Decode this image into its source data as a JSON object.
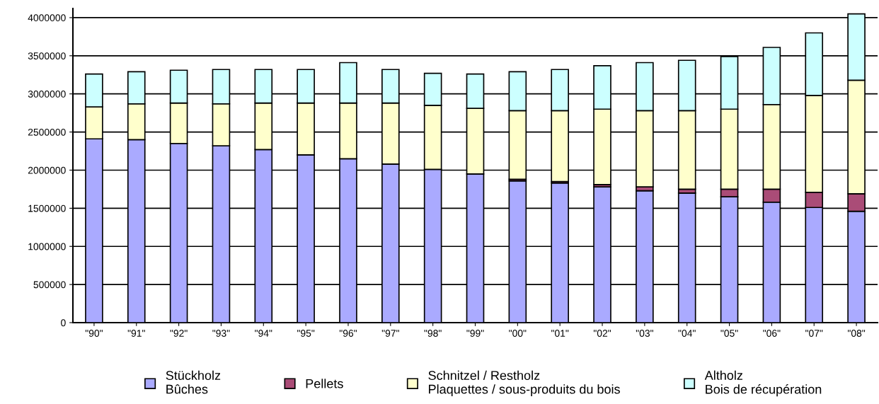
{
  "chart_data": {
    "type": "bar",
    "stacked": true,
    "categories": [
      "\"90\"",
      "\"91\"",
      "\"92\"",
      "\"93\"",
      "\"94\"",
      "\"95\"",
      "\"96\"",
      "\"97\"",
      "\"98\"",
      "\"99\"",
      "\"00\"",
      "\"01\"",
      "\"02\"",
      "\"03\"",
      "\"04\"",
      "\"05\"",
      "\"06\"",
      "\"07\"",
      "\"08\""
    ],
    "series": [
      {
        "name": "Stückholz\nBûches",
        "color": "#aaaaff",
        "values": [
          2410000,
          2400000,
          2350000,
          2320000,
          2270000,
          2200000,
          2150000,
          2080000,
          2010000,
          1950000,
          1860000,
          1830000,
          1780000,
          1730000,
          1700000,
          1650000,
          1580000,
          1510000,
          1460000
        ]
      },
      {
        "name": "Pellets",
        "color": "#aa4c77",
        "values": [
          null,
          null,
          null,
          null,
          null,
          null,
          null,
          null,
          null,
          null,
          20000,
          20000,
          30000,
          50000,
          50000,
          100000,
          170000,
          200000,
          230000
        ]
      },
      {
        "name": "Schnitzel / Restholz\nPlaquettes / sous-produits du bois",
        "color": "#ffffcc",
        "values": [
          420000,
          470000,
          530000,
          550000,
          610000,
          680000,
          730000,
          800000,
          840000,
          860000,
          900000,
          930000,
          990000,
          1000000,
          1030000,
          1050000,
          1110000,
          1270000,
          1490000
        ]
      },
      {
        "name": "Altholz\nBois de récupération",
        "color": "#ccffff",
        "values": [
          430000,
          420000,
          430000,
          450000,
          440000,
          440000,
          530000,
          440000,
          420000,
          450000,
          510000,
          540000,
          570000,
          630000,
          660000,
          690000,
          750000,
          820000,
          870000
        ]
      }
    ],
    "ylim": [
      0,
      4120000
    ],
    "yticks": [
      0,
      500000,
      1000000,
      1500000,
      2000000,
      2500000,
      3000000,
      3500000,
      4000000
    ],
    "grid": "y",
    "legend": "bottom"
  }
}
